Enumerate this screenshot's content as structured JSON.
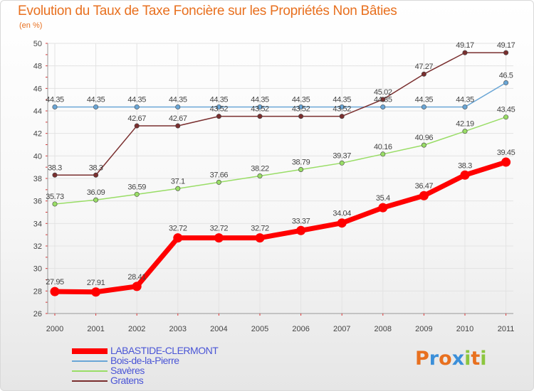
{
  "title": "Evolution du Taux de Taxe Foncière sur les Propriétés Non Bâties",
  "unit_label": "(en %)",
  "logo": {
    "text": "Proxiti",
    "letters": [
      {
        "char": "P",
        "color": "#e8701f"
      },
      {
        "char": "r",
        "color": "#3b8fd9"
      },
      {
        "char": "o",
        "color": "#e8701f"
      },
      {
        "char": "x",
        "color": "#3b8fd9"
      },
      {
        "char": "i",
        "color": "#8cc63f"
      },
      {
        "char": "t",
        "color": "#e8701f"
      },
      {
        "char": "i",
        "color": "#8cc63f"
      }
    ]
  },
  "chart_data": {
    "type": "line",
    "title": "Evolution du Taux de Taxe Foncière sur les Propriétés Non Bâties",
    "ylabel": "(en %)",
    "xlabel": "",
    "x": [
      "2000",
      "2001",
      "2002",
      "2003",
      "2004",
      "2005",
      "2006",
      "2007",
      "2008",
      "2009",
      "2010",
      "2011"
    ],
    "ylim": [
      26,
      50
    ],
    "yticks": [
      26,
      28,
      30,
      32,
      34,
      36,
      38,
      40,
      42,
      44,
      46,
      48,
      50
    ],
    "grid": true,
    "legend_position": "bottom-left",
    "series": [
      {
        "name": "LABASTIDE-CLERMONT",
        "color": "#ff0000",
        "values": [
          27.95,
          27.91,
          28.41,
          32.72,
          32.72,
          32.72,
          33.37,
          34.04,
          35.4,
          36.47,
          38.3,
          39.45
        ],
        "labels": [
          "27.95",
          "27.91",
          "28.41",
          "32.72",
          "32.72",
          "32.72",
          "33.37",
          "34.04",
          "35.4",
          "36.47",
          "38.3",
          "39.45"
        ]
      },
      {
        "name": "Bois-de-la-Pierre",
        "color": "#6aa6d6",
        "values": [
          44.35,
          44.35,
          44.35,
          44.35,
          44.35,
          44.35,
          44.35,
          44.35,
          44.35,
          44.35,
          44.35,
          46.5
        ],
        "labels": [
          "44.35",
          "44.35",
          "44.35",
          "44.35",
          "44.35",
          "44.35",
          "44.35",
          "44.35",
          "44.35",
          "44.35",
          "44.35",
          "46.5"
        ]
      },
      {
        "name": "Savères",
        "color": "#99dd66",
        "values": [
          35.73,
          36.09,
          36.59,
          37.1,
          37.66,
          38.22,
          38.79,
          39.37,
          40.16,
          40.96,
          42.19,
          43.45
        ],
        "labels": [
          "35.73",
          "36.09",
          "36.59",
          "37.1",
          "37.66",
          "38.22",
          "38.79",
          "39.37",
          "40.16",
          "40.96",
          "42.19",
          "43.45"
        ]
      },
      {
        "name": "Gratens",
        "color": "#7a2f2f",
        "values": [
          38.3,
          38.3,
          42.67,
          42.67,
          43.52,
          43.52,
          43.52,
          43.52,
          45.02,
          47.27,
          49.17,
          49.17
        ],
        "labels": [
          "38.3",
          "38.3",
          "42.67",
          "42.67",
          "43.52",
          "43.52",
          "43.52",
          "43.52",
          "45.02",
          "47.27",
          "49.17",
          "49.17"
        ]
      }
    ]
  }
}
